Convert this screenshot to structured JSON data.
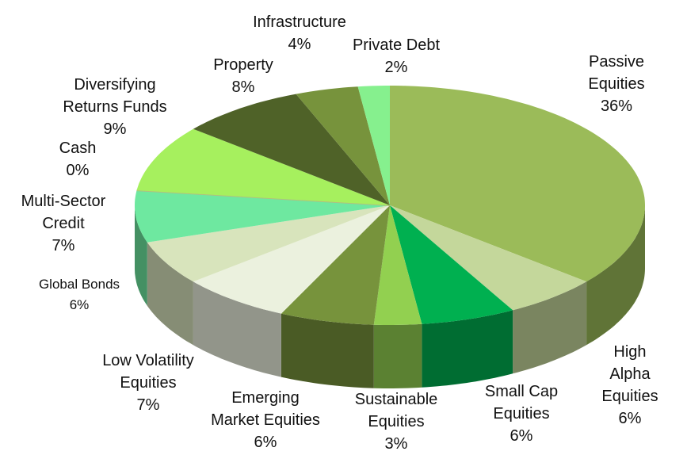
{
  "chart_data": {
    "type": "pie3d",
    "categories": [
      "Passive\nEquities",
      "High Alpha\nEquities",
      "Small Cap\nEquities",
      "Sustainable\nEquities",
      "Emerging\nMarket Equities",
      "Low Volatility\nEquities",
      "Global Bonds",
      "Multi-Sector\nCredit",
      "Cash",
      "Diversifying\nReturns Funds",
      "Property",
      "Infrastructure",
      "Private Debt"
    ],
    "values": [
      36,
      6,
      6,
      3,
      6,
      7,
      6,
      7,
      0,
      9,
      8,
      4,
      2
    ],
    "value_labels": [
      "36%",
      "6%",
      "6%",
      "3%",
      "6%",
      "7%",
      "6%",
      "7%",
      "0%",
      "9%",
      "8%",
      "4%",
      "2%"
    ],
    "colors": [
      "#9bbb59",
      "#c4d79b",
      "#00b050",
      "#92d050",
      "#77933c",
      "#ebf1de",
      "#d8e4bc",
      "#6ee8a0",
      "#b0c080",
      "#a6f05e",
      "#4f6228",
      "#77933c",
      "#86f08e"
    ]
  }
}
